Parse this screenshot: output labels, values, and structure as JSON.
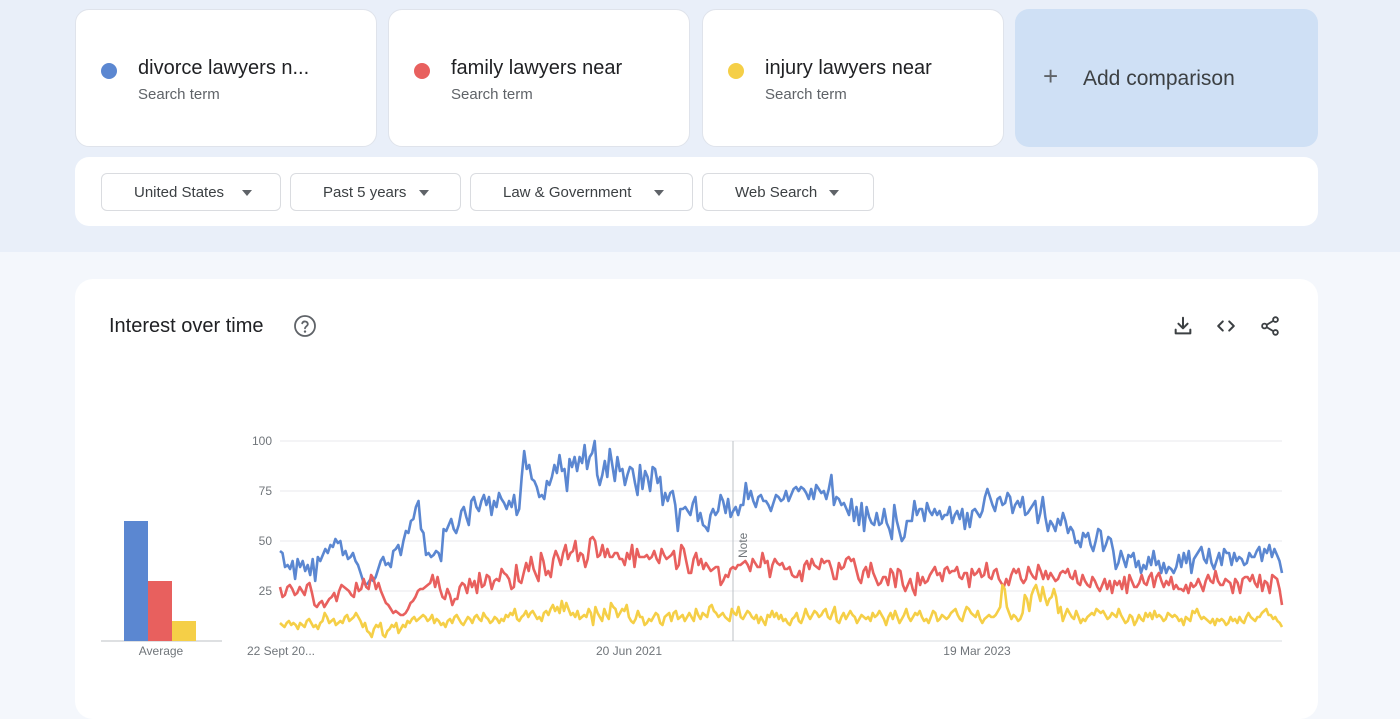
{
  "terms": [
    {
      "name": "divorce lawyers n...",
      "sub": "Search term",
      "color": "#5b87d1"
    },
    {
      "name": "family lawyers near",
      "sub": "Search term",
      "color": "#e8605e"
    },
    {
      "name": "injury lawyers near",
      "sub": "Search term",
      "color": "#f5cf47"
    }
  ],
  "add_comparison": {
    "label": "Add comparison",
    "icon": "plus-icon"
  },
  "filters": [
    {
      "label": "United States"
    },
    {
      "label": "Past 5 years"
    },
    {
      "label": "Law & Government"
    },
    {
      "label": "Web Search"
    }
  ],
  "panel": {
    "title": "Interest over time",
    "icons": [
      "help-icon",
      "download-icon",
      "embed-code-icon",
      "share-icon"
    ]
  },
  "chart_data": {
    "type": "line",
    "ylim": [
      0,
      100
    ],
    "yticks": [
      25,
      50,
      75,
      100
    ],
    "xtick_labels": [
      "22 Sept 20...",
      "20 Jun 2021",
      "19 Mar 2023"
    ],
    "note_label": "Note",
    "grid": true,
    "average": {
      "label": "Average",
      "values": [
        {
          "name": "divorce lawyers n...",
          "value": 60
        },
        {
          "name": "family lawyers near",
          "value": 30
        },
        {
          "name": "injury lawyers near",
          "value": 10
        }
      ]
    },
    "series": [
      {
        "name": "divorce lawyers n...",
        "color": "#5b87d1",
        "values": [
          45,
          44,
          37,
          38,
          36,
          40,
          31,
          41,
          37,
          40,
          35,
          38,
          33,
          41,
          30,
          42,
          40,
          43,
          46,
          44,
          48,
          47,
          51,
          49,
          50,
          43,
          45,
          41,
          42,
          44,
          40,
          38,
          34,
          30,
          28,
          29,
          31,
          30,
          32,
          36,
          40,
          42,
          38,
          39,
          37,
          45,
          46,
          48,
          43,
          50,
          55,
          54,
          60,
          61,
          67,
          70,
          56,
          54,
          43,
          44,
          42,
          43,
          45,
          44,
          40,
          56,
          55,
          58,
          61,
          56,
          54,
          58,
          65,
          67,
          62,
          58,
          70,
          72,
          67,
          65,
          70,
          73,
          68,
          72,
          63,
          70,
          67,
          74,
          71,
          69,
          66,
          70,
          67,
          73,
          63,
          66,
          82,
          95,
          86,
          88,
          81,
          80,
          77,
          72,
          73,
          71,
          80,
          78,
          82,
          88,
          84,
          93,
          85,
          86,
          75,
          91,
          87,
          92,
          85,
          92,
          89,
          98,
          86,
          92,
          94,
          100,
          83,
          78,
          83,
          90,
          82,
          96,
          88,
          80,
          92,
          85,
          86,
          78,
          83,
          87,
          86,
          79,
          73,
          88,
          76,
          85,
          82,
          75,
          87,
          86,
          79,
          82,
          68,
          74,
          70,
          74,
          75,
          68,
          55,
          66,
          66,
          67,
          65,
          63,
          69,
          72,
          60,
          64,
          58,
          57,
          55,
          63,
          66,
          63,
          65,
          73,
          70,
          64,
          71,
          62,
          65,
          67,
          63,
          68,
          68,
          79,
          71,
          75,
          70,
          67,
          72,
          73,
          70,
          70,
          68,
          65,
          69,
          73,
          72,
          70,
          71,
          75,
          70,
          73,
          76,
          77,
          75,
          77,
          76,
          74,
          71,
          76,
          71,
          78,
          76,
          74,
          75,
          71,
          76,
          83,
          68,
          72,
          71,
          68,
          69,
          66,
          63,
          71,
          60,
          67,
          58,
          69,
          55,
          67,
          62,
          59,
          58,
          64,
          58,
          59,
          66,
          59,
          56,
          51,
          68,
          60,
          55,
          50,
          52,
          60,
          60,
          60,
          70,
          63,
          66,
          66,
          60,
          69,
          65,
          63,
          66,
          63,
          65,
          61,
          63,
          63,
          67,
          59,
          63,
          65,
          61,
          66,
          56,
          64,
          57,
          65,
          66,
          64,
          62,
          65,
          72,
          76,
          72,
          68,
          65,
          71,
          72,
          68,
          69,
          74,
          72,
          64,
          68,
          70,
          67,
          72,
          63,
          64,
          66,
          68,
          70,
          59,
          64,
          72,
          62,
          55,
          60,
          58,
          55,
          61,
          58,
          64,
          60,
          54,
          57,
          55,
          49,
          50,
          47,
          54,
          52,
          54,
          48,
          45,
          50,
          56,
          55,
          45,
          48,
          52,
          51,
          45,
          36,
          39,
          45,
          41,
          37,
          43,
          42,
          44,
          37,
          40,
          34,
          38,
          36,
          42,
          38,
          45,
          38,
          40,
          34,
          39,
          34,
          37,
          36,
          34,
          37,
          43,
          37,
          44,
          39,
          45,
          34,
          41,
          43,
          45,
          47,
          41,
          39,
          46,
          39,
          36,
          40,
          44,
          38,
          46,
          44,
          44,
          38,
          44,
          40,
          42,
          41,
          38,
          39,
          44,
          42,
          42,
          45,
          47,
          40,
          46,
          44,
          48,
          42,
          46,
          43,
          40,
          34
        ]
      },
      {
        "name": "family lawyers near",
        "color": "#e8605e",
        "values": [
          27,
          22,
          23,
          27,
          28,
          26,
          23,
          24,
          27,
          25,
          23,
          28,
          29,
          24,
          18,
          17,
          19,
          20,
          17,
          19,
          21,
          22,
          24,
          20,
          25,
          28,
          27,
          26,
          25,
          23,
          22,
          29,
          25,
          26,
          31,
          27,
          26,
          33,
          31,
          26,
          29,
          25,
          22,
          19,
          18,
          16,
          14,
          15,
          14,
          13,
          13,
          14,
          16,
          19,
          20,
          22,
          25,
          26,
          26,
          27,
          28,
          29,
          33,
          27,
          32,
          26,
          22,
          21,
          26,
          23,
          18,
          21,
          21,
          27,
          29,
          28,
          24,
          31,
          27,
          30,
          24,
          34,
          27,
          28,
          33,
          32,
          26,
          30,
          31,
          30,
          36,
          34,
          33,
          31,
          26,
          27,
          38,
          30,
          29,
          34,
          39,
          35,
          42,
          36,
          33,
          30,
          44,
          40,
          33,
          35,
          32,
          41,
          45,
          42,
          38,
          44,
          48,
          41,
          44,
          45,
          50,
          40,
          44,
          43,
          37,
          41,
          51,
          52,
          50,
          42,
          43,
          48,
          42,
          46,
          42,
          42,
          44,
          44,
          41,
          41,
          38,
          44,
          41,
          48,
          37,
          46,
          42,
          42,
          42,
          43,
          41,
          42,
          45,
          41,
          39,
          46,
          43,
          41,
          42,
          43,
          45,
          36,
          38,
          48,
          46,
          40,
          34,
          34,
          41,
          44,
          38,
          41,
          36,
          39,
          37,
          35,
          36,
          37,
          37,
          28,
          30,
          33,
          32,
          36,
          37,
          36,
          38,
          38,
          39,
          40,
          38,
          35,
          41,
          39,
          37,
          37,
          44,
          39,
          40,
          32,
          38,
          41,
          39,
          38,
          39,
          36,
          36,
          37,
          33,
          32,
          32,
          35,
          30,
          38,
          40,
          36,
          41,
          38,
          37,
          36,
          41,
          39,
          40,
          40,
          36,
          31,
          31,
          39,
          36,
          37,
          41,
          42,
          40,
          41,
          36,
          31,
          29,
          35,
          37,
          32,
          39,
          34,
          31,
          28,
          29,
          32,
          32,
          28,
          36,
          34,
          27,
          36,
          35,
          28,
          25,
          28,
          31,
          26,
          23,
          34,
          28,
          32,
          29,
          30,
          33,
          35,
          37,
          33,
          34,
          30,
          36,
          37,
          34,
          35,
          35,
          37,
          32,
          31,
          34,
          34,
          27,
          36,
          33,
          34,
          36,
          32,
          33,
          39,
          32,
          31,
          35,
          36,
          31,
          29,
          27,
          31,
          28,
          33,
          36,
          34,
          36,
          31,
          29,
          31,
          37,
          34,
          32,
          31,
          38,
          35,
          31,
          35,
          31,
          34,
          32,
          30,
          31,
          34,
          35,
          34,
          36,
          32,
          31,
          35,
          29,
          28,
          33,
          30,
          28,
          27,
          32,
          30,
          27,
          25,
          28,
          31,
          26,
          30,
          24,
          30,
          28,
          30,
          26,
          32,
          24,
          33,
          30,
          27,
          27,
          29,
          33,
          29,
          28,
          32,
          34,
          27,
          32,
          34,
          30,
          27,
          30,
          28,
          32,
          26,
          28,
          26,
          26,
          25,
          28,
          24,
          29,
          27,
          28,
          31,
          28,
          25,
          30,
          33,
          30,
          29,
          35,
          30,
          28,
          28,
          31,
          30,
          29,
          24,
          31,
          29,
          24,
          31,
          32,
          32,
          30,
          33,
          29,
          27,
          33,
          25,
          30,
          29,
          24,
          33,
          32,
          31,
          26,
          18
        ]
      },
      {
        "name": "injury lawyers near",
        "color": "#f5cf47",
        "values": [
          9,
          8,
          7,
          9,
          10,
          8,
          9,
          8,
          6,
          9,
          8,
          7,
          10,
          11,
          9,
          7,
          8,
          6,
          9,
          10,
          14,
          12,
          9,
          10,
          11,
          8,
          9,
          10,
          9,
          12,
          13,
          10,
          11,
          12,
          14,
          12,
          10,
          7,
          9,
          5,
          4,
          2,
          6,
          8,
          7,
          9,
          3,
          2,
          5,
          6,
          8,
          7,
          9,
          4,
          6,
          8,
          7,
          10,
          9,
          11,
          12,
          10,
          11,
          12,
          13,
          12,
          10,
          11,
          13,
          9,
          11,
          10,
          8,
          9,
          7,
          10,
          11,
          9,
          12,
          13,
          11,
          9,
          8,
          10,
          12,
          11,
          9,
          12,
          13,
          11,
          10,
          14,
          12,
          11,
          9,
          10,
          12,
          11,
          9,
          11,
          10,
          13,
          12,
          14,
          13,
          16,
          11,
          10,
          12,
          13,
          15,
          12,
          14,
          15,
          13,
          11,
          12,
          10,
          14,
          15,
          13,
          16,
          18,
          15,
          17,
          14,
          20,
          15,
          19,
          16,
          13,
          14,
          12,
          15,
          11,
          12,
          13,
          12,
          16,
          14,
          8,
          17,
          14,
          12,
          10,
          16,
          13,
          11,
          19,
          17,
          16,
          12,
          14,
          16,
          15,
          18,
          12,
          10,
          9,
          11,
          15,
          12,
          12,
          8,
          9,
          11,
          10,
          12,
          14,
          13,
          9,
          8,
          12,
          13,
          14,
          10,
          14,
          15,
          11,
          12,
          13,
          10,
          12,
          14,
          12,
          10,
          16,
          13,
          11,
          14,
          13,
          12,
          17,
          18,
          15,
          14,
          12,
          13,
          14,
          12,
          11,
          10,
          16,
          14,
          13,
          17,
          12,
          11,
          13,
          15,
          14,
          12,
          11,
          13,
          9,
          12,
          10,
          8,
          13,
          12,
          15,
          12,
          14,
          11,
          13,
          10,
          11,
          9,
          8,
          11,
          12,
          14,
          10,
          9,
          12,
          16,
          13,
          11,
          13,
          15,
          14,
          12,
          13,
          15,
          16,
          12,
          11,
          14,
          17,
          10,
          9,
          12,
          14,
          11,
          13,
          15,
          13,
          12,
          9,
          11,
          13,
          12,
          11,
          12,
          10,
          14,
          12,
          13,
          15,
          13,
          11,
          8,
          12,
          14,
          11,
          15,
          12,
          9,
          11,
          13,
          16,
          12,
          10,
          12,
          14,
          13,
          15,
          12,
          10,
          11,
          9,
          12,
          15,
          14,
          10,
          11,
          13,
          12,
          11,
          12,
          14,
          15,
          16,
          13,
          11,
          10,
          14,
          17,
          16,
          14,
          13,
          12,
          15,
          11,
          9,
          11,
          12,
          13,
          12,
          12,
          13,
          15,
          17,
          28,
          26,
          17,
          14,
          11,
          13,
          12,
          10,
          11,
          14,
          23,
          21,
          15,
          23,
          26,
          28,
          24,
          20,
          27,
          22,
          18,
          21,
          22,
          26,
          22,
          14,
          17,
          10,
          13,
          16,
          14,
          12,
          11,
          15,
          12,
          9,
          11,
          10,
          12,
          13,
          14,
          13,
          16,
          15,
          14,
          15,
          13,
          11,
          12,
          14,
          13,
          12,
          16,
          13,
          11,
          9,
          10,
          13,
          12,
          8,
          10,
          13,
          11,
          10,
          14,
          12,
          14,
          11,
          15,
          12,
          13,
          12,
          10,
          11,
          14,
          13,
          12,
          13,
          12,
          10,
          11,
          8,
          12,
          11,
          10,
          15,
          14,
          16,
          13,
          11,
          12,
          11,
          10,
          9,
          11,
          8,
          11,
          10,
          11,
          10,
          8,
          9,
          12,
          10,
          11,
          9,
          12,
          10,
          9,
          12,
          14,
          12,
          11,
          10,
          12,
          12,
          14,
          15,
          16,
          13,
          13,
          11,
          12,
          10,
          9,
          7
        ]
      }
    ]
  }
}
